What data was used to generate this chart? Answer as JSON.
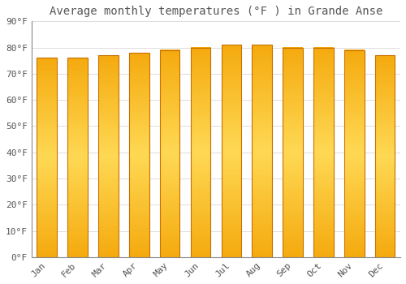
{
  "months": [
    "Jan",
    "Feb",
    "Mar",
    "Apr",
    "May",
    "Jun",
    "Jul",
    "Aug",
    "Sep",
    "Oct",
    "Nov",
    "Dec"
  ],
  "values": [
    76,
    76,
    77,
    78,
    79,
    80,
    81,
    81,
    80,
    80,
    79,
    77
  ],
  "bar_color_center": "#FFD454",
  "bar_color_edge": "#F5A800",
  "title": "Average monthly temperatures (°F ) in Grande Anse",
  "ylim": [
    0,
    90
  ],
  "yticks": [
    0,
    10,
    20,
    30,
    40,
    50,
    60,
    70,
    80,
    90
  ],
  "ytick_labels": [
    "0°F",
    "10°F",
    "20°F",
    "30°F",
    "40°F",
    "50°F",
    "60°F",
    "70°F",
    "80°F",
    "90°F"
  ],
  "plot_bg_color": "#FFFFFF",
  "fig_bg_color": "#FFFFFF",
  "grid_color": "#DDDDDD",
  "title_fontsize": 10,
  "tick_fontsize": 8,
  "bar_outline_color": "#C87000",
  "font_color": "#555555",
  "bar_width": 0.65,
  "figsize": [
    5.0,
    3.5
  ],
  "dpi": 100
}
